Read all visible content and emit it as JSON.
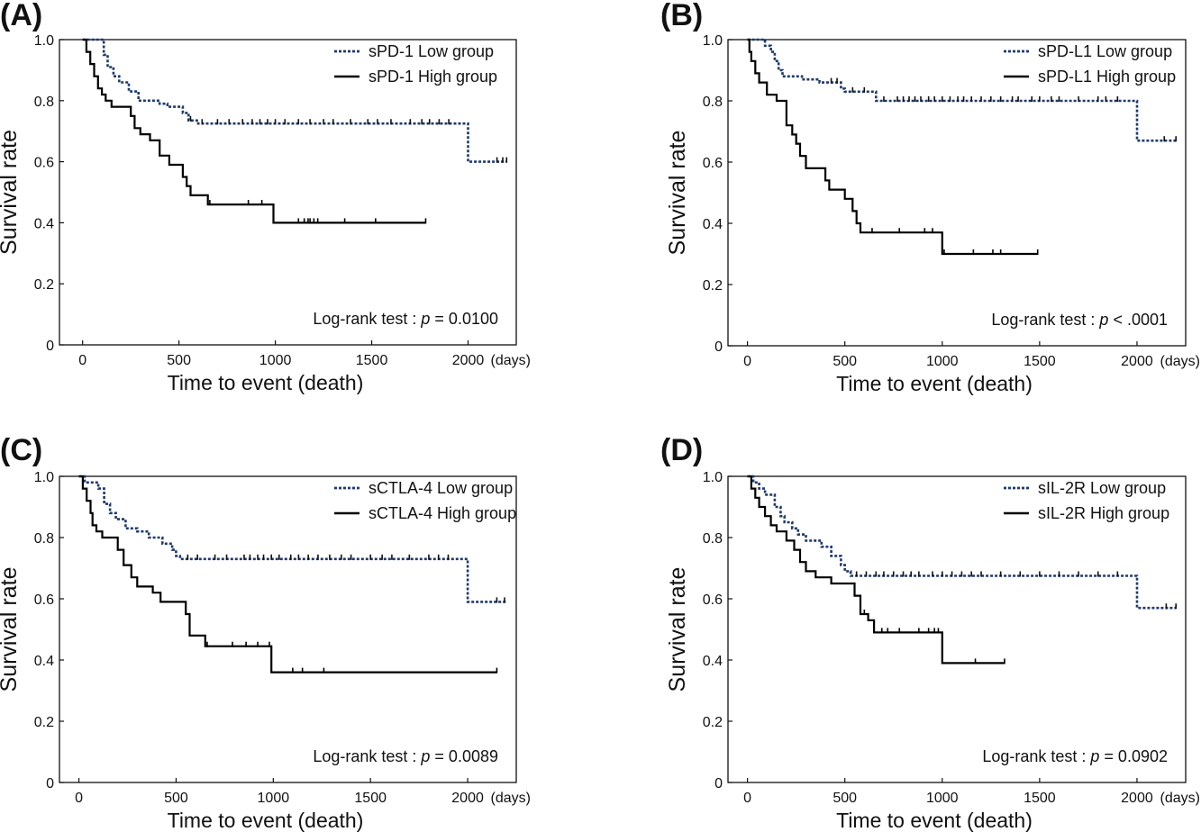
{
  "chart_data": [
    {
      "type": "line",
      "panel_label": "(A)",
      "xlabel": "Time to event (death)",
      "x_unit": "(days)",
      "ylabel": "Survival rate",
      "xlim": [
        -120,
        2250
      ],
      "ylim": [
        0,
        1.0
      ],
      "xticks": [
        0,
        500,
        1000,
        1500,
        2000
      ],
      "yticks": [
        0,
        0.2,
        0.4,
        0.6,
        0.8,
        1.0
      ],
      "ytick_labels": [
        "0",
        "0.2",
        "0.4",
        "0.6",
        "0.8",
        "1.0"
      ],
      "annotation": {
        "prefix": "Log-rank test : ",
        "p": "p",
        "suffix": " = 0.0100"
      },
      "series": [
        {
          "name": "sPD-1 Low group",
          "style": "dotted",
          "color": "#1f3a6b",
          "steps": [
            [
              0,
              1.0
            ],
            [
              110,
              0.95
            ],
            [
              130,
              0.91
            ],
            [
              160,
              0.88
            ],
            [
              190,
              0.86
            ],
            [
              240,
              0.83
            ],
            [
              290,
              0.8
            ],
            [
              400,
              0.79
            ],
            [
              440,
              0.78
            ],
            [
              520,
              0.76
            ],
            [
              550,
              0.735
            ],
            [
              600,
              0.725
            ],
            [
              2000,
              0.6
            ],
            [
              2200,
              0.6
            ]
          ],
          "censors": [
            560,
            620,
            700,
            760,
            830,
            880,
            920,
            960,
            1000,
            1050,
            1120,
            1180,
            1250,
            1300,
            1390,
            1480,
            1530,
            1600,
            1700,
            1760,
            1800,
            1850,
            1900,
            2150,
            2180,
            2200
          ]
        },
        {
          "name": "sPD-1 High group",
          "style": "solid",
          "color": "#000000",
          "steps": [
            [
              0,
              1.0
            ],
            [
              20,
              0.96
            ],
            [
              40,
              0.92
            ],
            [
              60,
              0.88
            ],
            [
              80,
              0.84
            ],
            [
              100,
              0.82
            ],
            [
              120,
              0.8
            ],
            [
              150,
              0.78
            ],
            [
              250,
              0.75
            ],
            [
              270,
              0.71
            ],
            [
              300,
              0.69
            ],
            [
              350,
              0.67
            ],
            [
              400,
              0.62
            ],
            [
              450,
              0.59
            ],
            [
              520,
              0.55
            ],
            [
              540,
              0.52
            ],
            [
              560,
              0.49
            ],
            [
              650,
              0.46
            ],
            [
              990,
              0.4
            ],
            [
              1780,
              0.4
            ]
          ],
          "censors": [
            660,
            860,
            930,
            990,
            1120,
            1150,
            1170,
            1180,
            1200,
            1220,
            1360,
            1520,
            1780
          ]
        }
      ]
    },
    {
      "type": "line",
      "panel_label": "(B)",
      "xlabel": "Time to event (death)",
      "x_unit": "(days)",
      "ylabel": "Survival rate",
      "xlim": [
        -100,
        2250
      ],
      "ylim": [
        0,
        1.0
      ],
      "xticks": [
        0,
        500,
        1000,
        1500,
        2000
      ],
      "yticks": [
        0,
        0.2,
        0.4,
        0.6,
        0.8,
        1.0
      ],
      "ytick_labels": [
        "0",
        "0.2",
        "0.4",
        "0.6",
        "0.8",
        "1.0"
      ],
      "annotation": {
        "prefix": "Log-rank test : ",
        "p": "p",
        "suffix": " < .0001"
      },
      "series": [
        {
          "name": "sPD-L1 Low group",
          "style": "dotted",
          "color": "#1f3a6b",
          "steps": [
            [
              0,
              1.0
            ],
            [
              90,
              0.98
            ],
            [
              120,
              0.96
            ],
            [
              140,
              0.93
            ],
            [
              160,
              0.9
            ],
            [
              180,
              0.88
            ],
            [
              280,
              0.87
            ],
            [
              370,
              0.86
            ],
            [
              480,
              0.84
            ],
            [
              500,
              0.83
            ],
            [
              660,
              0.8
            ],
            [
              2000,
              0.67
            ],
            [
              2200,
              0.67
            ]
          ],
          "censors": [
            430,
            460,
            540,
            600,
            700,
            770,
            800,
            830,
            860,
            890,
            930,
            960,
            1000,
            1040,
            1080,
            1110,
            1150,
            1200,
            1250,
            1300,
            1360,
            1390,
            1460,
            1500,
            1560,
            1600,
            1700,
            1800,
            1840,
            1900,
            2140,
            2200
          ]
        },
        {
          "name": "sPD-L1 High group",
          "style": "solid",
          "color": "#000000",
          "steps": [
            [
              0,
              1.0
            ],
            [
              10,
              0.96
            ],
            [
              20,
              0.93
            ],
            [
              40,
              0.89
            ],
            [
              60,
              0.86
            ],
            [
              100,
              0.82
            ],
            [
              150,
              0.8
            ],
            [
              200,
              0.72
            ],
            [
              230,
              0.69
            ],
            [
              250,
              0.66
            ],
            [
              270,
              0.62
            ],
            [
              300,
              0.58
            ],
            [
              400,
              0.54
            ],
            [
              420,
              0.51
            ],
            [
              500,
              0.48
            ],
            [
              540,
              0.44
            ],
            [
              560,
              0.4
            ],
            [
              580,
              0.37
            ],
            [
              1000,
              0.3
            ],
            [
              1490,
              0.3
            ]
          ],
          "censors": [
            640,
            780,
            910,
            950,
            1010,
            1160,
            1260,
            1300,
            1490
          ]
        }
      ]
    },
    {
      "type": "line",
      "panel_label": "(C)",
      "xlabel": "Time to event (death)",
      "x_unit": "(days)",
      "ylabel": "Survival rate",
      "xlim": [
        -100,
        2250
      ],
      "ylim": [
        0,
        1.0
      ],
      "xticks": [
        0,
        500,
        1000,
        1500,
        2000
      ],
      "yticks": [
        0,
        0.2,
        0.4,
        0.6,
        0.8,
        1.0
      ],
      "ytick_labels": [
        "0",
        "0.2",
        "0.4",
        "0.6",
        "0.8",
        "1.0"
      ],
      "annotation": {
        "prefix": "Log-rank test : ",
        "p": "p",
        "suffix": " = 0.0089"
      },
      "series": [
        {
          "name": "sCTLA-4 Low group",
          "style": "dotted",
          "color": "#1f3a6b",
          "steps": [
            [
              0,
              1.0
            ],
            [
              30,
              0.98
            ],
            [
              100,
              0.96
            ],
            [
              130,
              0.91
            ],
            [
              160,
              0.88
            ],
            [
              190,
              0.86
            ],
            [
              240,
              0.83
            ],
            [
              300,
              0.82
            ],
            [
              360,
              0.8
            ],
            [
              430,
              0.78
            ],
            [
              480,
              0.76
            ],
            [
              500,
              0.74
            ],
            [
              520,
              0.73
            ],
            [
              2000,
              0.59
            ],
            [
              2200,
              0.59
            ]
          ],
          "censors": [
            560,
            610,
            700,
            760,
            850,
            880,
            920,
            950,
            990,
            1030,
            1090,
            1130,
            1180,
            1230,
            1290,
            1350,
            1400,
            1500,
            1560,
            1610,
            1700,
            1800,
            1850,
            1900,
            2150,
            2190
          ]
        },
        {
          "name": "sCTLA-4 High group",
          "style": "solid",
          "color": "#000000",
          "steps": [
            [
              0,
              1.0
            ],
            [
              20,
              0.96
            ],
            [
              40,
              0.92
            ],
            [
              60,
              0.88
            ],
            [
              70,
              0.84
            ],
            [
              90,
              0.82
            ],
            [
              120,
              0.8
            ],
            [
              200,
              0.76
            ],
            [
              230,
              0.71
            ],
            [
              270,
              0.67
            ],
            [
              300,
              0.64
            ],
            [
              380,
              0.62
            ],
            [
              420,
              0.59
            ],
            [
              550,
              0.55
            ],
            [
              570,
              0.52
            ],
            [
              570,
              0.48
            ],
            [
              650,
              0.445
            ],
            [
              990,
              0.36
            ],
            [
              2150,
              0.36
            ]
          ],
          "censors": [
            660,
            790,
            860,
            920,
            980,
            1100,
            1150,
            1260,
            2150
          ]
        }
      ]
    },
    {
      "type": "line",
      "panel_label": "(D)",
      "xlabel": "Time to event (death)",
      "x_unit": "(days)",
      "ylabel": "Survival rate",
      "xlim": [
        -100,
        2250
      ],
      "ylim": [
        0,
        1.0
      ],
      "xticks": [
        0,
        500,
        1000,
        1500,
        2000
      ],
      "yticks": [
        0,
        0.2,
        0.4,
        0.6,
        0.8,
        1.0
      ],
      "ytick_labels": [
        "0",
        "0.2",
        "0.4",
        "0.6",
        "0.8",
        "1.0"
      ],
      "annotation": {
        "prefix": "Log-rank test : ",
        "p": "p",
        "suffix": " = 0.0902"
      },
      "series": [
        {
          "name": "sIL-2R Low group",
          "style": "dotted",
          "color": "#1f3a6b",
          "steps": [
            [
              0,
              1.0
            ],
            [
              30,
              0.98
            ],
            [
              60,
              0.96
            ],
            [
              90,
              0.94
            ],
            [
              140,
              0.9
            ],
            [
              170,
              0.87
            ],
            [
              190,
              0.85
            ],
            [
              230,
              0.83
            ],
            [
              260,
              0.81
            ],
            [
              300,
              0.79
            ],
            [
              380,
              0.77
            ],
            [
              430,
              0.74
            ],
            [
              480,
              0.71
            ],
            [
              500,
              0.69
            ],
            [
              530,
              0.675
            ],
            [
              2000,
              0.57
            ],
            [
              2200,
              0.57
            ]
          ],
          "censors": [
            560,
            610,
            660,
            700,
            750,
            800,
            840,
            880,
            950,
            1000,
            1050,
            1100,
            1150,
            1200,
            1300,
            1400,
            1500,
            1600,
            1700,
            1800,
            1900,
            2150,
            2200
          ]
        },
        {
          "name": "sIL-2R High group",
          "style": "solid",
          "color": "#000000",
          "steps": [
            [
              0,
              1.0
            ],
            [
              20,
              0.96
            ],
            [
              40,
              0.93
            ],
            [
              60,
              0.9
            ],
            [
              90,
              0.87
            ],
            [
              120,
              0.84
            ],
            [
              150,
              0.82
            ],
            [
              200,
              0.79
            ],
            [
              240,
              0.76
            ],
            [
              270,
              0.72
            ],
            [
              300,
              0.69
            ],
            [
              350,
              0.67
            ],
            [
              430,
              0.65
            ],
            [
              550,
              0.61
            ],
            [
              580,
              0.55
            ],
            [
              620,
              0.53
            ],
            [
              650,
              0.49
            ],
            [
              1000,
              0.39
            ],
            [
              1320,
              0.39
            ]
          ],
          "censors": [
            600,
            690,
            720,
            780,
            880,
            930,
            960,
            980,
            1000,
            1170,
            1320
          ]
        }
      ]
    }
  ]
}
